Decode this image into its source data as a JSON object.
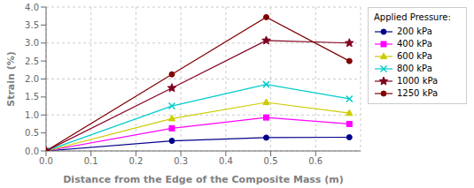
{
  "chart_data": {
    "type": "line",
    "xlabel": "Distance from the Edge of the Composite Mass (m)",
    "ylabel": "Strain (%)",
    "legend_title": "Applied Pressure:",
    "legend": "right",
    "grid": true,
    "x": [
      0.0,
      0.28,
      0.49,
      0.675
    ],
    "xlim": [
      0.0,
      0.7
    ],
    "ylim": [
      0.0,
      4.0
    ],
    "xticks": [
      {
        "value": 0,
        "label": "0.0"
      },
      0.1,
      0.2,
      0.3,
      0.4,
      0.5,
      0.6
    ],
    "yticks": [
      {
        "value": 0,
        "label": "0.0"
      },
      0.5,
      {
        "value": 1,
        "label": "1.0"
      },
      1.5,
      {
        "value": 2,
        "label": "2.0"
      },
      2.5,
      {
        "value": 3,
        "label": "3.0"
      },
      3.5,
      {
        "value": 4,
        "label": "4.0"
      }
    ],
    "series": [
      {
        "name": "200 kPa",
        "color": "#00008B",
        "marker": "circle",
        "values": [
          0.0,
          0.28,
          0.37,
          0.38
        ]
      },
      {
        "name": "400 kPa",
        "color": "#FF00FF",
        "marker": "square",
        "values": [
          0.0,
          0.63,
          0.93,
          0.75
        ]
      },
      {
        "name": "600 kPa",
        "color": "#CCCC00",
        "marker": "triangle",
        "values": [
          0.0,
          0.9,
          1.35,
          1.05
        ]
      },
      {
        "name": "800 kPa",
        "color": "#00CCCC",
        "marker": "cross",
        "values": [
          0.0,
          1.25,
          1.85,
          1.45
        ]
      },
      {
        "name": "1000 kPa",
        "color": "#800020",
        "marker": "star",
        "values": [
          0.0,
          1.75,
          3.07,
          3.0
        ]
      },
      {
        "name": "1250 kPa",
        "color": "#800000",
        "marker": "circle",
        "values": [
          0.0,
          2.13,
          3.72,
          2.5
        ]
      }
    ]
  }
}
